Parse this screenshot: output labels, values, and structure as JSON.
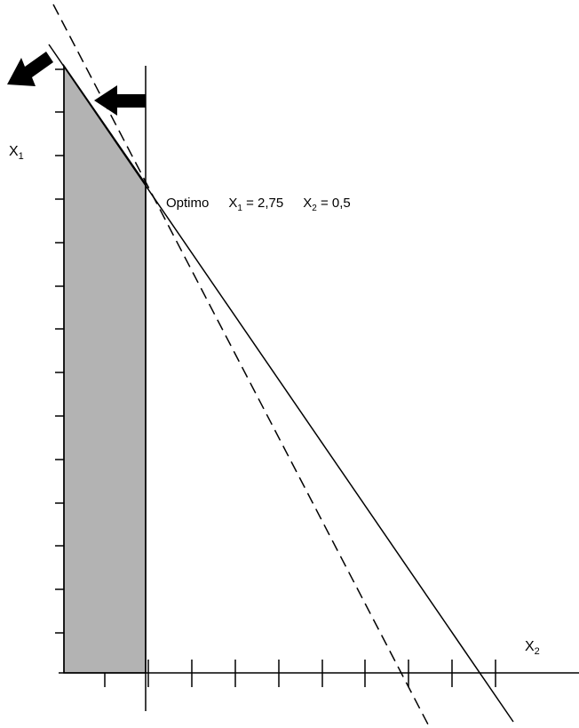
{
  "diagram": {
    "y_axis_label": {
      "base": "X",
      "sub": "1"
    },
    "x_axis_label": {
      "base": "X",
      "sub": "2"
    },
    "optimum": {
      "prefix": "Optimo",
      "x1_base": "X",
      "x1_sub": "1",
      "x1_value": " = 2,75",
      "x2_base": "X",
      "x2_sub": "2",
      "x2_value": " = 0,5"
    },
    "colors": {
      "feasible_region": "#b3b3b3",
      "line": "#000000",
      "background": "#ffffff"
    }
  }
}
